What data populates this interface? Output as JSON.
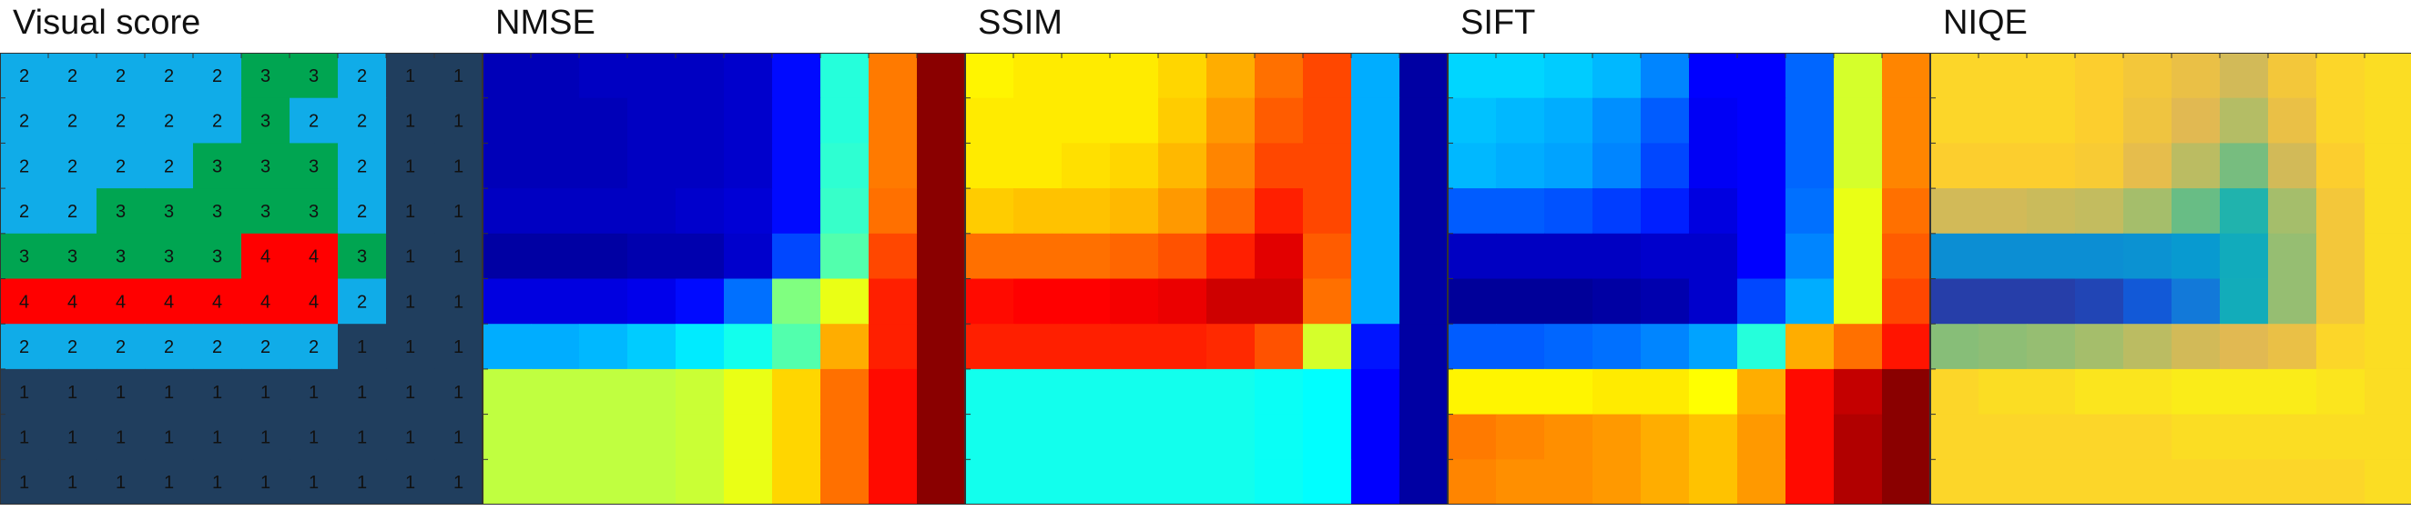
{
  "chart_data": [
    {
      "type": "heatmap",
      "title": "Visual score",
      "colormap": "categorical",
      "show_cell_values": true,
      "class_colors": {
        "1": "#203e5e",
        "2": "#10ace8",
        "3": "#00a551",
        "4": "#ff0000"
      },
      "values": [
        [
          2,
          2,
          2,
          2,
          2,
          3,
          3,
          2,
          1,
          1
        ],
        [
          2,
          2,
          2,
          2,
          2,
          3,
          2,
          2,
          1,
          1
        ],
        [
          2,
          2,
          2,
          2,
          3,
          3,
          3,
          2,
          1,
          1
        ],
        [
          2,
          2,
          3,
          3,
          3,
          3,
          3,
          2,
          1,
          1
        ],
        [
          3,
          3,
          3,
          3,
          3,
          4,
          4,
          3,
          1,
          1
        ],
        [
          4,
          4,
          4,
          4,
          4,
          4,
          4,
          2,
          1,
          1
        ],
        [
          2,
          2,
          2,
          2,
          2,
          2,
          2,
          1,
          1,
          1
        ],
        [
          1,
          1,
          1,
          1,
          1,
          1,
          1,
          1,
          1,
          1
        ],
        [
          1,
          1,
          1,
          1,
          1,
          1,
          1,
          1,
          1,
          1
        ],
        [
          1,
          1,
          1,
          1,
          1,
          1,
          1,
          1,
          1,
          1
        ]
      ]
    },
    {
      "type": "heatmap",
      "title": "NMSE",
      "colormap": "jet",
      "show_cell_values": false,
      "values": [
        [
          0.04,
          0.04,
          0.05,
          0.05,
          0.05,
          0.06,
          0.12,
          0.4,
          0.75,
          0.99
        ],
        [
          0.04,
          0.04,
          0.04,
          0.05,
          0.05,
          0.06,
          0.12,
          0.4,
          0.75,
          0.99
        ],
        [
          0.04,
          0.04,
          0.04,
          0.05,
          0.05,
          0.06,
          0.12,
          0.41,
          0.75,
          0.99
        ],
        [
          0.05,
          0.05,
          0.05,
          0.05,
          0.06,
          0.07,
          0.12,
          0.42,
          0.76,
          0.99
        ],
        [
          0.02,
          0.02,
          0.02,
          0.03,
          0.03,
          0.06,
          0.18,
          0.45,
          0.8,
          0.99
        ],
        [
          0.08,
          0.08,
          0.08,
          0.09,
          0.12,
          0.22,
          0.5,
          0.6,
          0.84,
          0.99
        ],
        [
          0.28,
          0.28,
          0.29,
          0.31,
          0.34,
          0.38,
          0.45,
          0.7,
          0.84,
          0.99
        ],
        [
          0.56,
          0.56,
          0.56,
          0.56,
          0.57,
          0.6,
          0.66,
          0.76,
          0.86,
          0.99
        ],
        [
          0.56,
          0.56,
          0.56,
          0.56,
          0.57,
          0.6,
          0.66,
          0.76,
          0.86,
          0.99
        ],
        [
          0.56,
          0.56,
          0.56,
          0.56,
          0.57,
          0.6,
          0.66,
          0.76,
          0.86,
          0.99
        ]
      ]
    },
    {
      "type": "heatmap",
      "title": "SSIM",
      "colormap": "jet",
      "show_cell_values": false,
      "values": [
        [
          0.63,
          0.64,
          0.64,
          0.64,
          0.66,
          0.7,
          0.76,
          0.8,
          0.28,
          0.02
        ],
        [
          0.64,
          0.64,
          0.64,
          0.64,
          0.67,
          0.72,
          0.78,
          0.8,
          0.28,
          0.02
        ],
        [
          0.64,
          0.64,
          0.65,
          0.66,
          0.69,
          0.74,
          0.8,
          0.8,
          0.28,
          0.02
        ],
        [
          0.67,
          0.68,
          0.68,
          0.69,
          0.72,
          0.77,
          0.84,
          0.8,
          0.28,
          0.02
        ],
        [
          0.76,
          0.76,
          0.76,
          0.77,
          0.79,
          0.84,
          0.9,
          0.78,
          0.28,
          0.02
        ],
        [
          0.86,
          0.87,
          0.87,
          0.88,
          0.89,
          0.92,
          0.92,
          0.76,
          0.28,
          0.02
        ],
        [
          0.84,
          0.84,
          0.84,
          0.84,
          0.84,
          0.83,
          0.79,
          0.58,
          0.13,
          0.02
        ],
        [
          0.38,
          0.38,
          0.38,
          0.38,
          0.38,
          0.38,
          0.37,
          0.36,
          0.11,
          0.02
        ],
        [
          0.38,
          0.38,
          0.38,
          0.38,
          0.38,
          0.38,
          0.37,
          0.36,
          0.11,
          0.02
        ],
        [
          0.38,
          0.38,
          0.38,
          0.38,
          0.38,
          0.38,
          0.37,
          0.36,
          0.11,
          0.02
        ]
      ]
    },
    {
      "type": "heatmap",
      "title": "SIFT",
      "colormap": "jet",
      "show_cell_values": false,
      "values": [
        [
          0.32,
          0.32,
          0.31,
          0.29,
          0.24,
          0.11,
          0.11,
          0.21,
          0.58,
          0.74
        ],
        [
          0.3,
          0.29,
          0.28,
          0.25,
          0.2,
          0.1,
          0.11,
          0.21,
          0.58,
          0.74
        ],
        [
          0.29,
          0.28,
          0.27,
          0.24,
          0.18,
          0.1,
          0.11,
          0.21,
          0.58,
          0.74
        ],
        [
          0.2,
          0.2,
          0.19,
          0.17,
          0.14,
          0.08,
          0.11,
          0.22,
          0.6,
          0.76
        ],
        [
          0.05,
          0.05,
          0.05,
          0.05,
          0.06,
          0.06,
          0.11,
          0.24,
          0.6,
          0.78
        ],
        [
          0.01,
          0.01,
          0.01,
          0.02,
          0.03,
          0.06,
          0.18,
          0.28,
          0.6,
          0.8
        ],
        [
          0.2,
          0.2,
          0.21,
          0.22,
          0.24,
          0.27,
          0.4,
          0.7,
          0.76,
          0.85
        ],
        [
          0.63,
          0.63,
          0.63,
          0.64,
          0.64,
          0.62,
          0.7,
          0.86,
          0.93,
          0.99
        ],
        [
          0.75,
          0.74,
          0.73,
          0.72,
          0.7,
          0.68,
          0.72,
          0.86,
          0.95,
          0.99
        ],
        [
          0.74,
          0.73,
          0.73,
          0.72,
          0.7,
          0.68,
          0.72,
          0.86,
          0.95,
          0.99
        ]
      ]
    },
    {
      "type": "heatmap",
      "title": "NIQE",
      "colormap": "parula",
      "show_cell_values": false,
      "values": [
        [
          0.95,
          0.95,
          0.95,
          0.94,
          0.92,
          0.9,
          0.86,
          0.92,
          0.95,
          0.96
        ],
        [
          0.95,
          0.95,
          0.95,
          0.94,
          0.91,
          0.88,
          0.82,
          0.9,
          0.95,
          0.96
        ],
        [
          0.94,
          0.94,
          0.94,
          0.93,
          0.89,
          0.83,
          0.74,
          0.86,
          0.94,
          0.96
        ],
        [
          0.86,
          0.86,
          0.85,
          0.84,
          0.8,
          0.72,
          0.6,
          0.8,
          0.92,
          0.96
        ],
        [
          0.38,
          0.38,
          0.38,
          0.38,
          0.4,
          0.44,
          0.54,
          0.78,
          0.92,
          0.96
        ],
        [
          0.06,
          0.06,
          0.06,
          0.08,
          0.14,
          0.28,
          0.55,
          0.78,
          0.92,
          0.96
        ],
        [
          0.76,
          0.77,
          0.78,
          0.8,
          0.83,
          0.86,
          0.88,
          0.9,
          0.95,
          0.96
        ],
        [
          0.95,
          0.96,
          0.96,
          0.97,
          0.97,
          0.98,
          0.98,
          0.98,
          0.97,
          0.96
        ],
        [
          0.95,
          0.95,
          0.95,
          0.95,
          0.95,
          0.96,
          0.96,
          0.96,
          0.96,
          0.96
        ],
        [
          0.95,
          0.95,
          0.95,
          0.95,
          0.95,
          0.95,
          0.95,
          0.95,
          0.95,
          0.96
        ]
      ]
    }
  ]
}
